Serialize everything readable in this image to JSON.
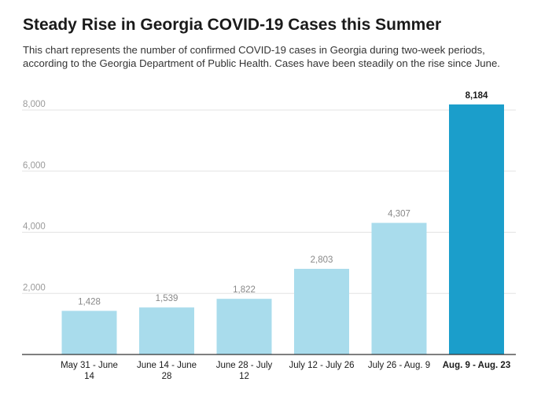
{
  "header": {
    "title": "Steady Rise in Georgia COVID-19 Cases this Summer",
    "subtitle": "This chart represents the number of confirmed COVID-19 cases in Georgia during two-week periods, according to the Georgia Department of Public Health. Cases have been steadily on the rise since June."
  },
  "colors": {
    "bar": "#a9dcec",
    "highlight": "#1b9ecb",
    "grid": "#e3e3e3",
    "axis": "#333333"
  },
  "chart_data": {
    "type": "bar",
    "title": "Steady Rise in Georgia COVID-19 Cases this Summer",
    "subtitle": "This chart represents the number of confirmed COVID-19 cases in Georgia during two-week periods, according to the Georgia Department of Public Health. Cases have been steadily on the rise since June.",
    "categories": [
      [
        "May 31 - June",
        "14"
      ],
      [
        "June 14 - June",
        "28"
      ],
      [
        "June 28 - July",
        "12"
      ],
      [
        "July 12 - July 26"
      ],
      [
        "July 26 - Aug. 9"
      ],
      [
        "Aug. 9 - Aug. 23"
      ]
    ],
    "values": [
      1428,
      1539,
      1822,
      2803,
      4307,
      8184
    ],
    "value_labels": [
      "1,428",
      "1,539",
      "1,822",
      "2,803",
      "4,307",
      "8,184"
    ],
    "highlight_index": 5,
    "xlabel": "",
    "ylabel": "",
    "ylim": [
      0,
      8000
    ],
    "yticks": [
      2000,
      4000,
      6000,
      8000
    ],
    "ytick_labels": [
      "2,000",
      "4,000",
      "6,000",
      "8,000"
    ],
    "grid": true,
    "legend": "none"
  }
}
